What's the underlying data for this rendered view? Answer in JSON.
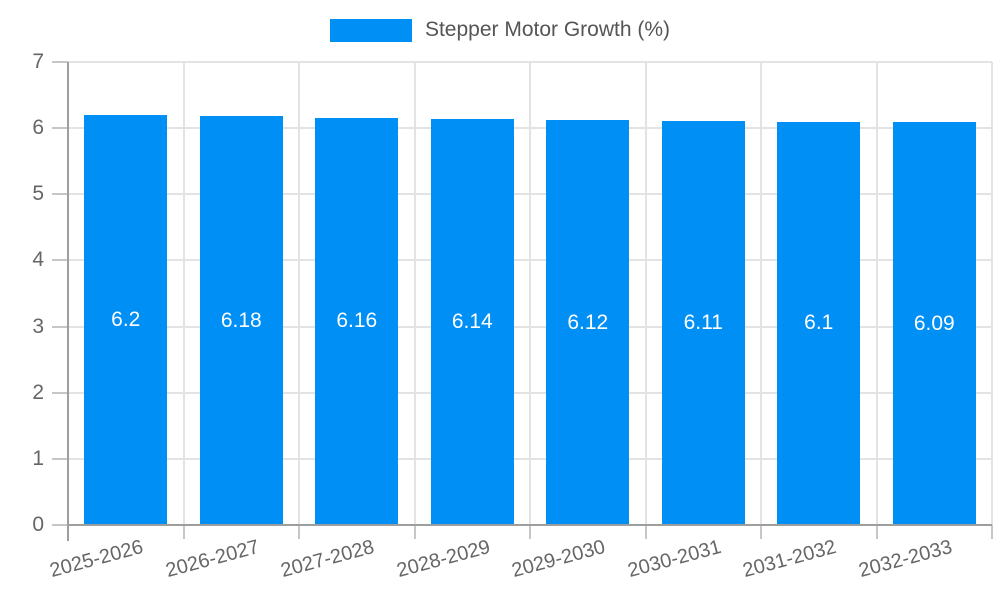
{
  "legend": {
    "label": "Stepper Motor Growth (%)"
  },
  "chart_data": {
    "type": "bar",
    "title": "",
    "series_name": "Stepper Motor Growth (%)",
    "categories": [
      "2025-2026",
      "2026-2027",
      "2027-2028",
      "2028-2029",
      "2029-2030",
      "2030-2031",
      "2031-2032",
      "2032-2033"
    ],
    "values": [
      6.2,
      6.18,
      6.16,
      6.14,
      6.12,
      6.11,
      6.1,
      6.09
    ],
    "bar_labels": [
      "6.2",
      "6.18",
      "6.16",
      "6.14",
      "6.12",
      "6.11",
      "6.1",
      "6.09"
    ],
    "xlabel": "",
    "ylabel": "",
    "ylim": [
      0,
      7
    ],
    "yticks": [
      0,
      1,
      2,
      3,
      4,
      5,
      6,
      7
    ],
    "grid": true,
    "legend_position": "top",
    "colors": {
      "bar": "#008FF5",
      "grid": "#e3e3e3",
      "axis": "#9e9e9e",
      "tick": "#c6c6c6",
      "axis_text": "#666666",
      "legend_text": "#555555",
      "bar_label_text": "#ffffff"
    }
  }
}
